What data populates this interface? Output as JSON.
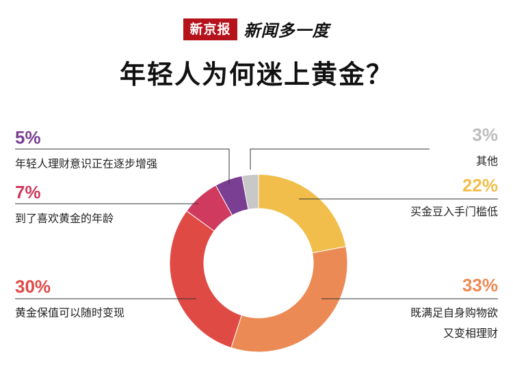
{
  "brand": {
    "logo": "新京报",
    "name": "新闻多一度"
  },
  "title": "年轻人为何迷上黄金？",
  "colors": {
    "brand_red": "#b5121b",
    "yellow": "#f2be4b",
    "orange": "#ec8a55",
    "red": "#e04a45",
    "magenta": "#cf3a5e",
    "purple": "#7a3e93",
    "gray": "#c8c8c8",
    "callout_line": "#333333"
  },
  "chart_data": {
    "type": "pie",
    "style": "donut",
    "title": "年轻人为何迷上黄金？",
    "unit": "%",
    "slices": [
      {
        "label": "买金豆入手门槛低",
        "value": 22,
        "pct_label": "22%",
        "color": "#f2be4b"
      },
      {
        "label": "既满足自身购物欲又变相理财",
        "value": 33,
        "pct_label": "33%",
        "color": "#ec8a55"
      },
      {
        "label": "黄金保值可以随时变现",
        "value": 30,
        "pct_label": "30%",
        "color": "#e04a45"
      },
      {
        "label": "到了喜欢黄金的年龄",
        "value": 7,
        "pct_label": "7%",
        "color": "#cf3a5e"
      },
      {
        "label": "年轻人理财意识正在逐步增强",
        "value": 5,
        "pct_label": "5%",
        "color": "#7a3e93"
      },
      {
        "label": "其他",
        "value": 3,
        "pct_label": "3%",
        "color": "#c8c8c8"
      }
    ]
  },
  "annotations": {
    "other": {
      "pct": "3%",
      "label": "其他"
    },
    "low_threshold": {
      "pct": "22%",
      "label": "买金豆入手门槛低"
    },
    "shopping": {
      "pct": "33%",
      "label_line1": "既满足自身购物欲",
      "label_line2": "又变相理财"
    },
    "preserve": {
      "pct": "30%",
      "label": "黄金保值可以随时变现"
    },
    "age": {
      "pct": "7%",
      "label": "到了喜欢黄金的年龄"
    },
    "awareness": {
      "pct": "5%",
      "label": "年轻人理财意识正在逐步增强"
    }
  }
}
